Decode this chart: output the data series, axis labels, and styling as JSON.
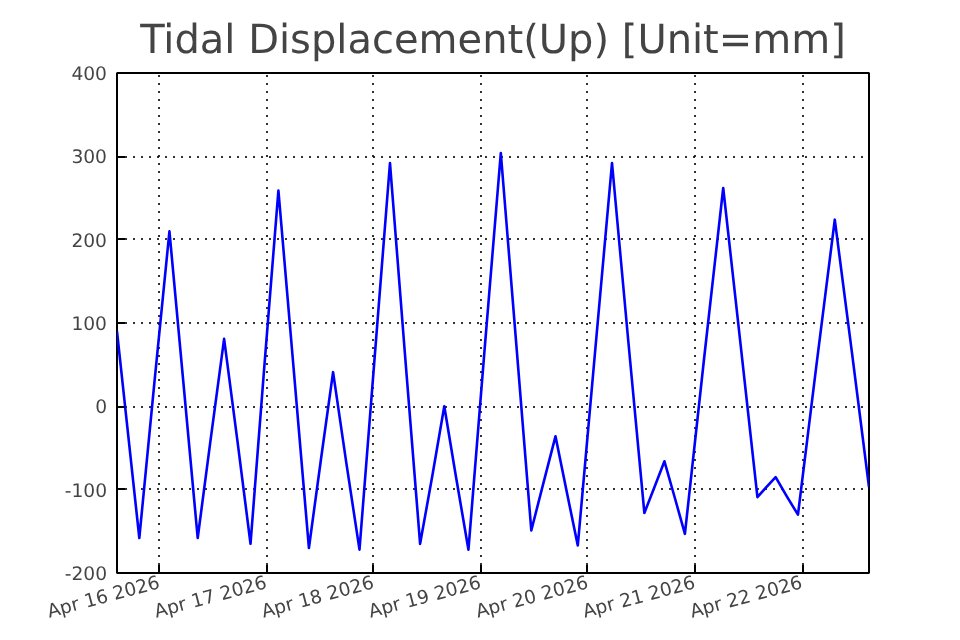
{
  "chart_data": {
    "type": "line",
    "title": "Tidal Displacement(Up) [Unit=mm]",
    "x": [
      "2026-04-15T14:30",
      "2026-04-15T19:30",
      "2026-04-15T22:50",
      "2026-04-16T02:15",
      "2026-04-16T05:25",
      "2026-04-16T08:35",
      "2026-04-16T11:30",
      "2026-04-16T14:30",
      "2026-04-16T17:30",
      "2026-04-16T20:25",
      "2026-04-16T23:30",
      "2026-04-17T02:40",
      "2026-04-17T06:05",
      "2026-04-17T09:30",
      "2026-04-17T12:10",
      "2026-04-17T14:55",
      "2026-04-17T17:50",
      "2026-04-17T20:50",
      "2026-04-18T00:15",
      "2026-04-18T03:40",
      "2026-04-18T07:00",
      "2026-04-18T10:25",
      "2026-04-18T13:10",
      "2026-04-18T15:50",
      "2026-04-18T18:30",
      "2026-04-18T21:15",
      "2026-04-19T00:50",
      "2026-04-19T04:30",
      "2026-04-19T07:55",
      "2026-04-19T11:20",
      "2026-04-19T14:00",
      "2026-04-19T16:45",
      "2026-04-19T19:15",
      "2026-04-19T21:45",
      "2026-04-20T01:35",
      "2026-04-20T05:25",
      "2026-04-20T09:00",
      "2026-04-20T12:40",
      "2026-04-20T14:55",
      "2026-04-20T17:10",
      "2026-04-20T19:30",
      "2026-04-20T21:45",
      "2026-04-21T02:00",
      "2026-04-21T06:20",
      "2026-04-21T10:10",
      "2026-04-21T14:00",
      "2026-04-21T16:00",
      "2026-04-21T18:05",
      "2026-04-21T20:35",
      "2026-04-21T23:05",
      "2026-04-22T03:10",
      "2026-04-22T07:20",
      "2026-04-22T11:10",
      "2026-04-22T15:00"
    ],
    "series": [
      {
        "color": "#0000ff",
        "values": [
          90,
          -158,
          26,
          210,
          26,
          -158,
          -39,
          81,
          -42,
          -165,
          47,
          259,
          45,
          -170,
          -65,
          41,
          -66,
          -172,
          60,
          292,
          64,
          -165,
          -83,
          0,
          -86,
          -172,
          66,
          304,
          78,
          -149,
          -93,
          -36,
          -102,
          -167,
          63,
          292,
          82,
          -128,
          -97,
          -66,
          -110,
          -153,
          55,
          262,
          77,
          -109,
          -97,
          -85,
          -108,
          -130,
          47,
          224,
          65,
          -97
        ]
      }
    ],
    "xlim": [
      "2026-04-15T14:30",
      "2026-04-22T15:00"
    ],
    "xticks": [
      {
        "value": "2026-04-16",
        "label": "Apr 16 2026"
      },
      {
        "value": "2026-04-17",
        "label": "Apr 17 2026"
      },
      {
        "value": "2026-04-18",
        "label": "Apr 18 2026"
      },
      {
        "value": "2026-04-19",
        "label": "Apr 19 2026"
      },
      {
        "value": "2026-04-20",
        "label": "Apr 20 2026"
      },
      {
        "value": "2026-04-21",
        "label": "Apr 21 2026"
      },
      {
        "value": "2026-04-22",
        "label": "Apr 22 2026"
      }
    ],
    "ylim": [
      -200,
      400
    ],
    "yticks": [
      -200,
      -100,
      0,
      100,
      200,
      300,
      400
    ],
    "grid": true,
    "line_style": "solid"
  }
}
